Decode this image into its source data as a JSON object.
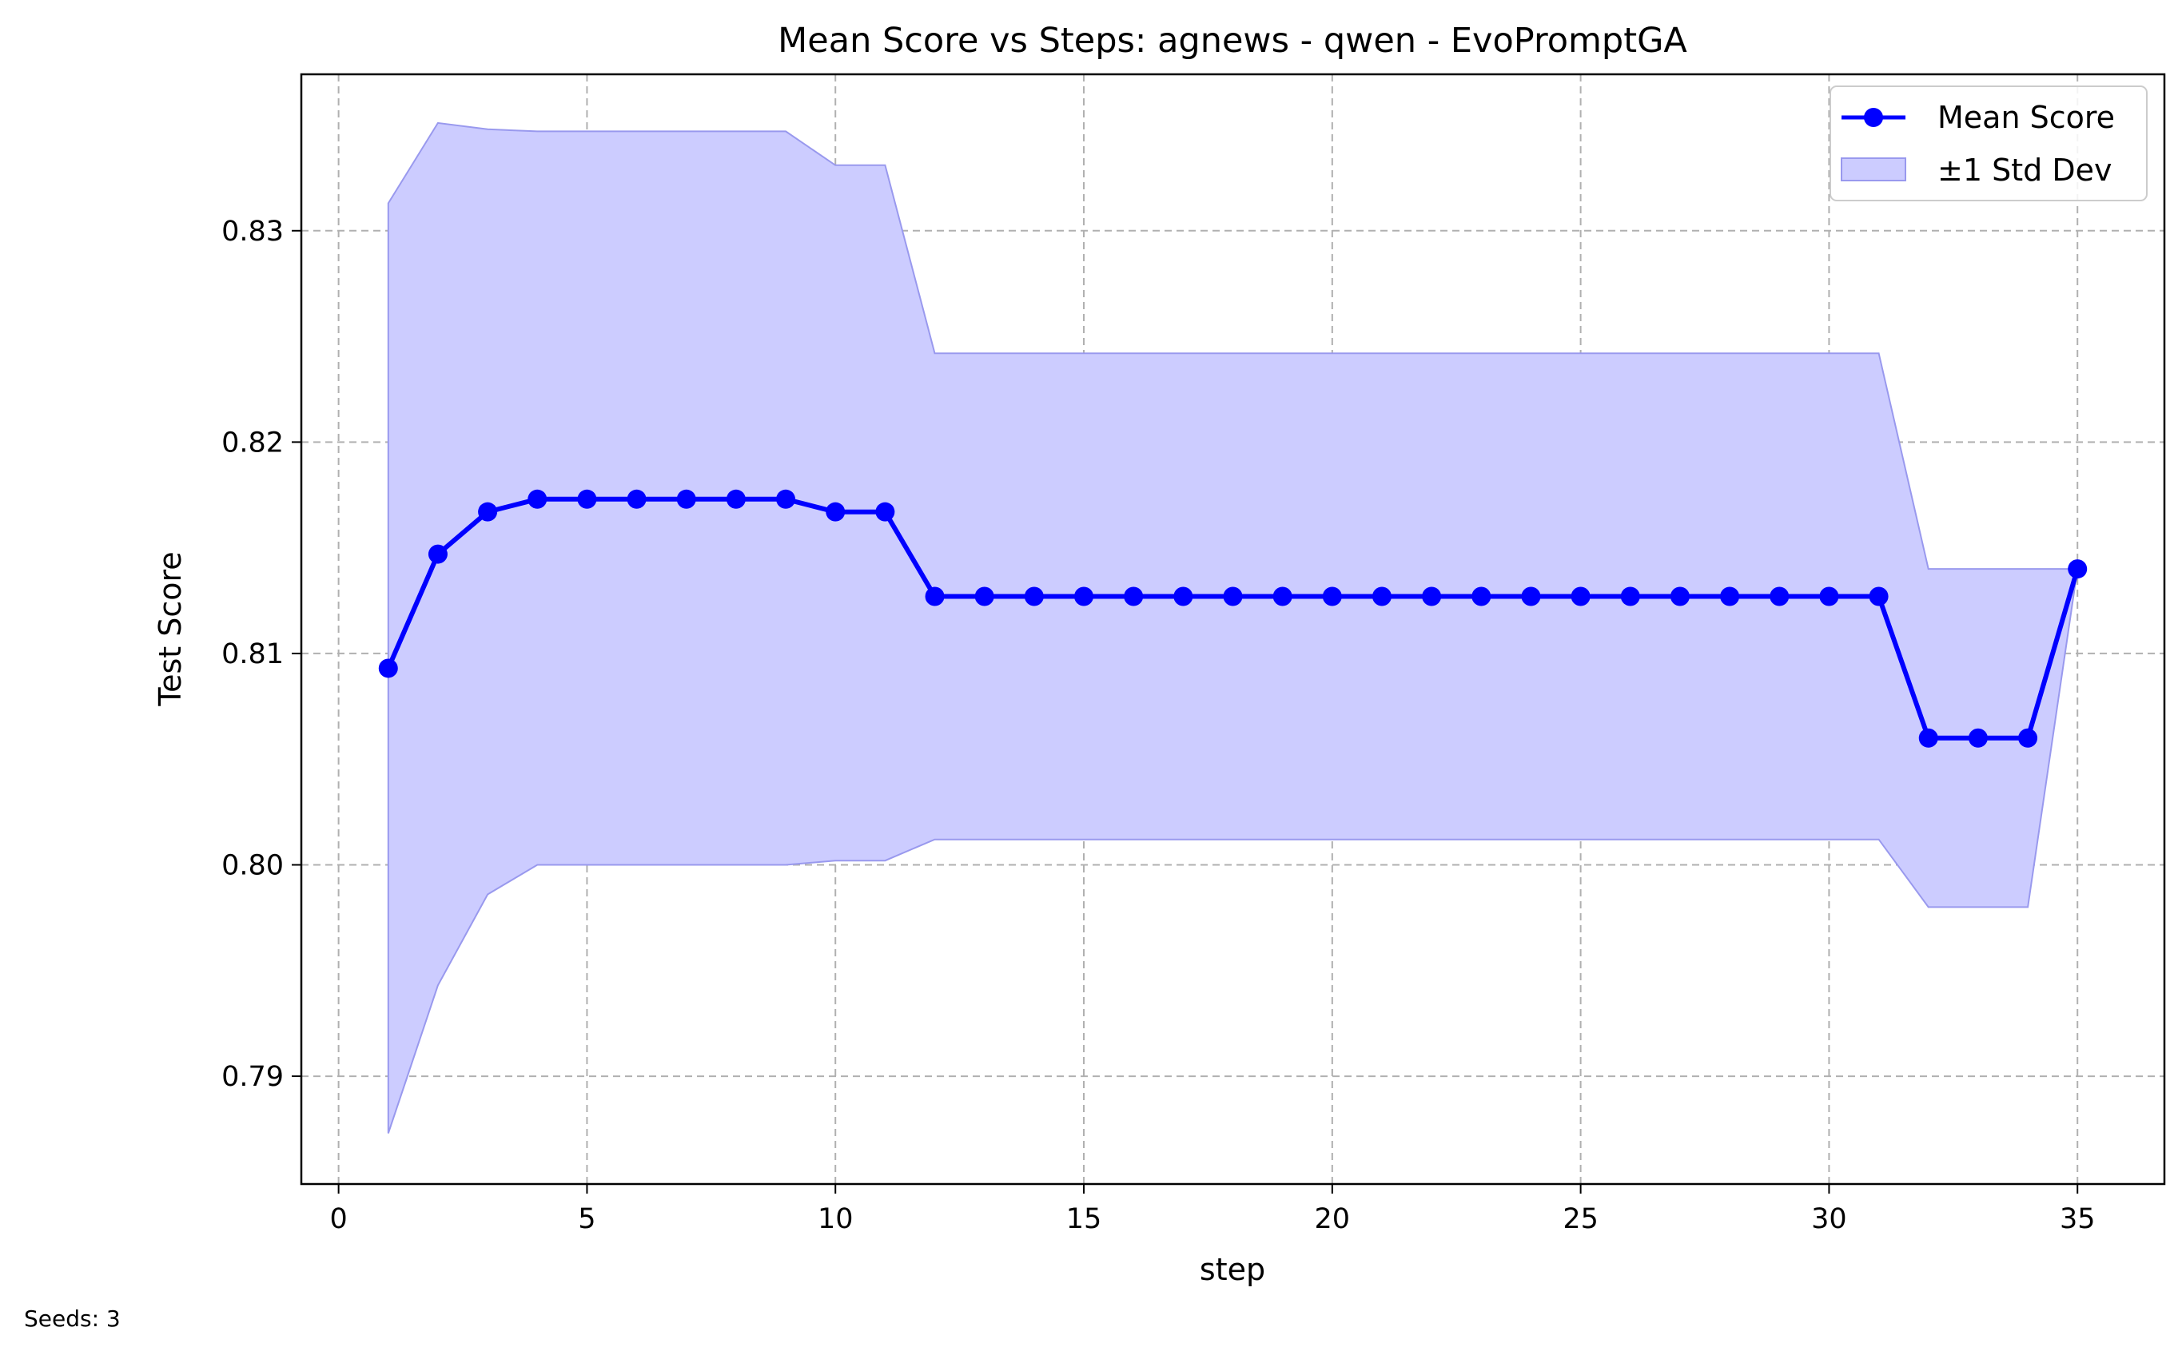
{
  "chart_data": {
    "type": "line",
    "title": "Mean Score vs Steps: agnews - qwen - EvoPromptGA",
    "xlabel": "step",
    "ylabel": "Test Score",
    "xlim": [
      -0.75,
      36.75
    ],
    "ylim": [
      0.7849,
      0.8374
    ],
    "xticks": [
      0,
      5,
      10,
      15,
      20,
      25,
      30,
      35
    ],
    "xtick_labels": [
      "0",
      "5",
      "10",
      "15",
      "20",
      "25",
      "30",
      "35"
    ],
    "yticks": [
      0.79,
      0.8,
      0.81,
      0.82,
      0.83
    ],
    "ytick_labels": [
      "0.79",
      "0.80",
      "0.81",
      "0.82",
      "0.83"
    ],
    "grid": true,
    "legend_position": "top-right",
    "colors": {
      "line": "#0000ff",
      "band": "#ccccff",
      "band_edge": "#9999ee",
      "grid": "#b0b0b0"
    },
    "x": [
      1,
      2,
      3,
      4,
      5,
      6,
      7,
      8,
      9,
      10,
      11,
      12,
      13,
      14,
      15,
      16,
      17,
      18,
      19,
      20,
      21,
      22,
      23,
      24,
      25,
      26,
      27,
      28,
      29,
      30,
      31,
      32,
      33,
      34,
      35
    ],
    "series": [
      {
        "name": "Mean Score",
        "values": [
          0.8093,
          0.8147,
          0.8167,
          0.8173,
          0.8173,
          0.8173,
          0.8173,
          0.8173,
          0.8173,
          0.8167,
          0.8167,
          0.8127,
          0.8127,
          0.8127,
          0.8127,
          0.8127,
          0.8127,
          0.8127,
          0.8127,
          0.8127,
          0.8127,
          0.8127,
          0.8127,
          0.8127,
          0.8127,
          0.8127,
          0.8127,
          0.8127,
          0.8127,
          0.8127,
          0.8127,
          0.806,
          0.806,
          0.806,
          0.814
        ]
      },
      {
        "name": "±1 Std Dev",
        "upper": [
          0.8313,
          0.8351,
          0.8348,
          0.8347,
          0.8347,
          0.8347,
          0.8347,
          0.8347,
          0.8347,
          0.8331,
          0.8331,
          0.8242,
          0.8242,
          0.8242,
          0.8242,
          0.8242,
          0.8242,
          0.8242,
          0.8242,
          0.8242,
          0.8242,
          0.8242,
          0.8242,
          0.8242,
          0.8242,
          0.8242,
          0.8242,
          0.8242,
          0.8242,
          0.8242,
          0.8242,
          0.814,
          0.814,
          0.814,
          0.814
        ],
        "lower": [
          0.7873,
          0.7943,
          0.7986,
          0.8,
          0.8,
          0.8,
          0.8,
          0.8,
          0.8,
          0.8002,
          0.8002,
          0.8012,
          0.8012,
          0.8012,
          0.8012,
          0.8012,
          0.8012,
          0.8012,
          0.8012,
          0.8012,
          0.8012,
          0.8012,
          0.8012,
          0.8012,
          0.8012,
          0.8012,
          0.8012,
          0.8012,
          0.8012,
          0.8012,
          0.8012,
          0.798,
          0.798,
          0.798,
          0.814
        ]
      }
    ]
  },
  "footnote": "Seeds: 3"
}
